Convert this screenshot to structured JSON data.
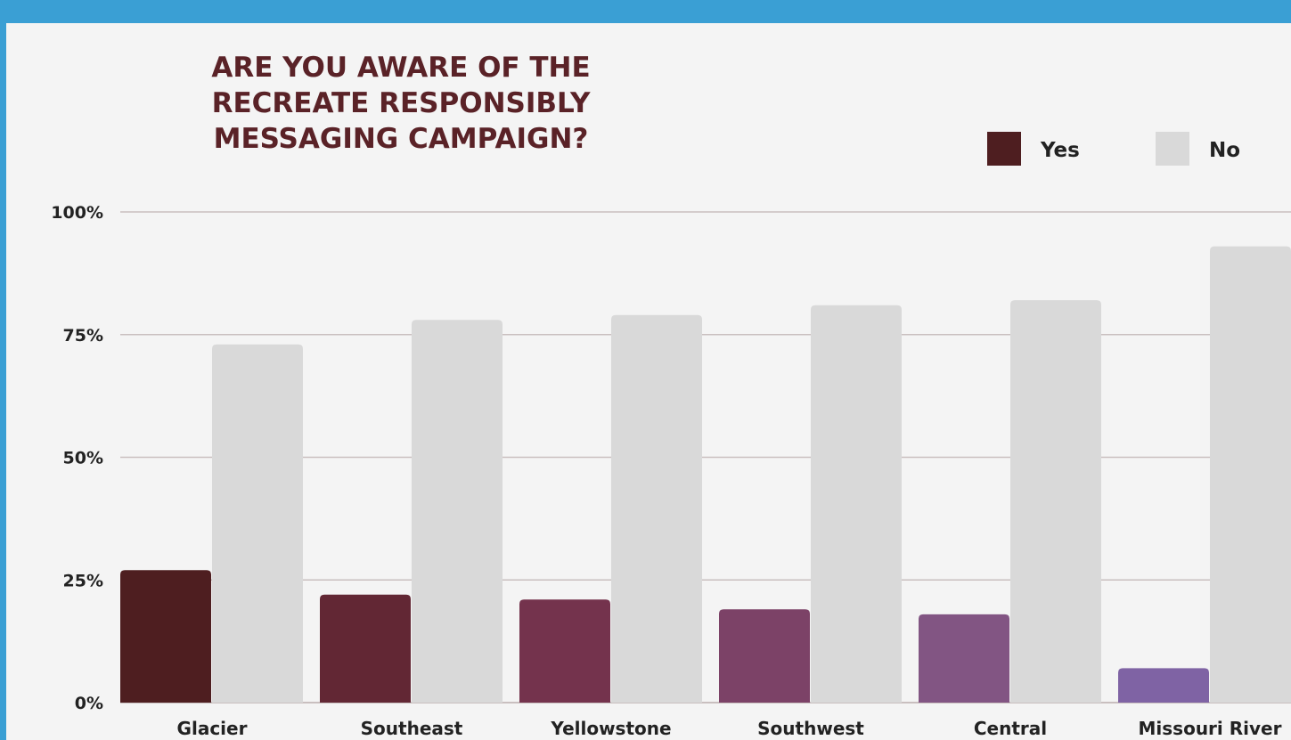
{
  "chart_data": {
    "type": "bar",
    "title_lines": [
      "ARE YOU AWARE OF THE",
      "RECREATE RESPONSIBLY",
      "MESSAGING CAMPAIGN?"
    ],
    "categories": [
      "Glacier",
      "Southeast",
      "Yellowstone",
      "Southwest",
      "Central",
      "Missouri River"
    ],
    "series": [
      {
        "name": "Yes",
        "values": [
          27,
          22,
          21,
          19,
          18,
          7
        ]
      },
      {
        "name": "No",
        "values": [
          73,
          78,
          79,
          81,
          82,
          93
        ]
      }
    ],
    "y_ticks": [
      "0%",
      "25%",
      "50%",
      "75%",
      "100%"
    ],
    "ylim": [
      0,
      100
    ],
    "grid": true,
    "legend_position": "top-right",
    "colors": {
      "frame": "#3a9fd4",
      "background": "#f4f4f4",
      "grid": "#c9bfbf",
      "title": "#5a2227",
      "legend_yes": "#4e1e20",
      "no": "#d9d9d9",
      "yes_bars": [
        "#4e1e20",
        "#622734",
        "#74334d",
        "#7c4267",
        "#825583",
        "#7f63a4"
      ]
    }
  }
}
